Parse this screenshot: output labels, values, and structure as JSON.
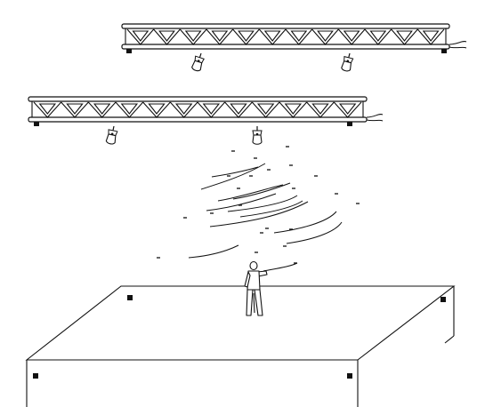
{
  "scene": {
    "description_visible_text": "",
    "colors": {
      "line": "#111111",
      "background": "#ffffff"
    }
  },
  "trusses": [
    {
      "id": "upper-truss",
      "panel_count": 12,
      "lights": 2
    },
    {
      "id": "lower-truss",
      "panel_count": 12,
      "lights": 2
    }
  ],
  "stage": {
    "corner_markers": 4
  },
  "performer": {
    "count": 1
  },
  "particles": {
    "dash_count": 22,
    "arc_count": 12
  }
}
